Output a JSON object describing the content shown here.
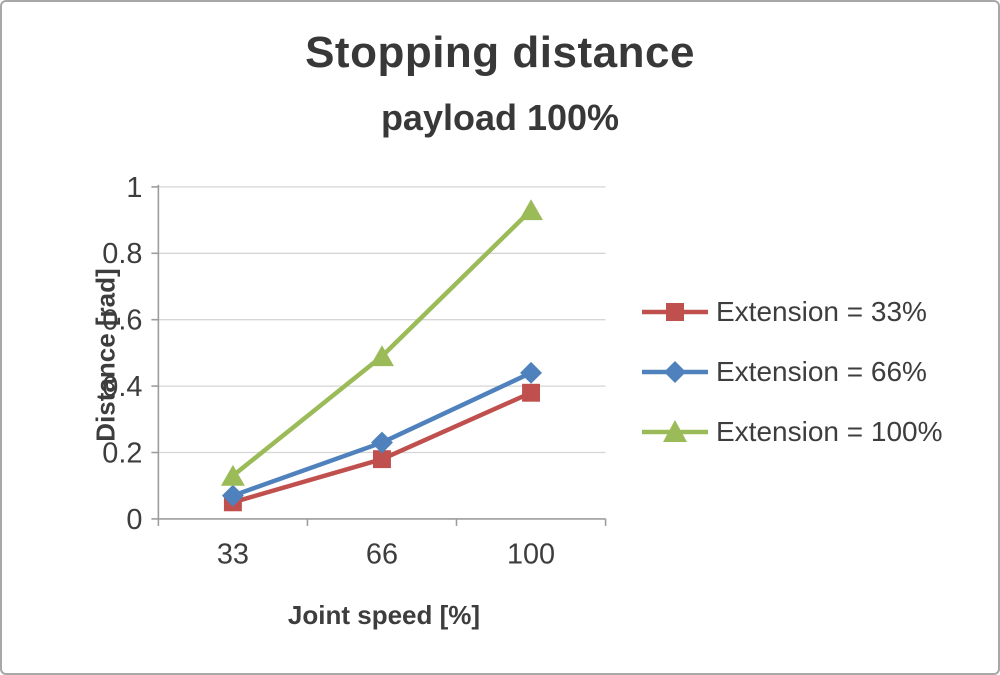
{
  "chart_data": {
    "type": "line",
    "title": "Stopping distance",
    "subtitle": "payload 100%",
    "xlabel": "Joint speed [%]",
    "ylabel": "Distance [rad]",
    "categories": [
      "33",
      "66",
      "100"
    ],
    "ylim": [
      0,
      1
    ],
    "yticks": [
      "0",
      "0.2",
      "0.4",
      "0.6",
      "0.8",
      "1"
    ],
    "grid": true,
    "legend_position": "right",
    "series": [
      {
        "name": "Extension = 33%",
        "marker": "square",
        "color": "#c0504d",
        "values": [
          0.05,
          0.18,
          0.38
        ]
      },
      {
        "name": "Extension = 66%",
        "marker": "diamond",
        "color": "#4f81bd",
        "values": [
          0.07,
          0.23,
          0.44
        ]
      },
      {
        "name": "Extension = 100%",
        "marker": "triangle",
        "color": "#9bbb59",
        "values": [
          0.13,
          0.49,
          0.93
        ]
      }
    ],
    "colors": {
      "text": "#3d3d3d",
      "grid": "#d6d6d6",
      "axis": "#9d9d9d",
      "frame_border": "#a8a8a8"
    }
  }
}
